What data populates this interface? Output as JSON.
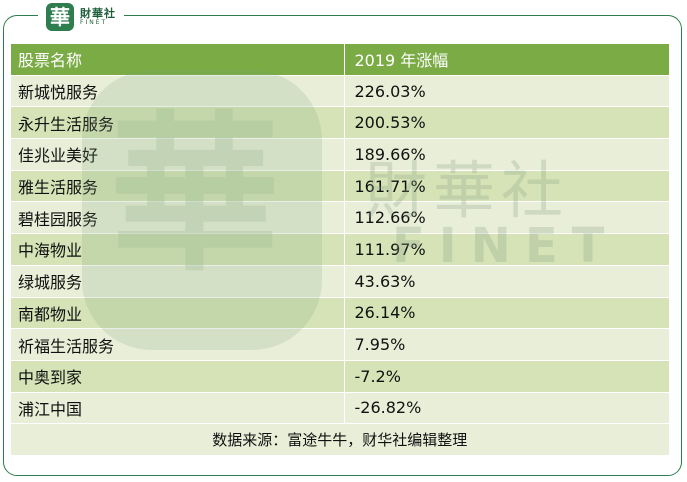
{
  "logo": {
    "mark": "華",
    "name_cn": "財華社",
    "name_en": "FINET"
  },
  "table": {
    "headers": [
      "股票名称",
      "2019 年涨幅"
    ],
    "rows": [
      [
        "新城悦服务",
        "226.03%"
      ],
      [
        "永升生活服务",
        "200.53%"
      ],
      [
        "佳兆业美好",
        "189.66%"
      ],
      [
        "雅生活服务",
        "161.71%"
      ],
      [
        "碧桂园服务",
        "112.66%"
      ],
      [
        "中海物业",
        "111.97%"
      ],
      [
        "绿城服务",
        "43.63%"
      ],
      [
        "南都物业",
        "26.14%"
      ],
      [
        "祈福生活服务",
        "7.95%"
      ],
      [
        "中奥到家",
        "-7.2%"
      ],
      [
        "浦江中国",
        "-26.82%"
      ]
    ],
    "source": "数据来源：富途牛牛，财华社编辑整理"
  },
  "watermark": {
    "mark": "華",
    "name_cn": "財華社",
    "name_en": "FINET"
  },
  "colors": {
    "header_bg": "#7aab45",
    "row_light": "#e8eed7",
    "row_dark": "#d5e3b6",
    "frame": "#2e7d4f"
  }
}
